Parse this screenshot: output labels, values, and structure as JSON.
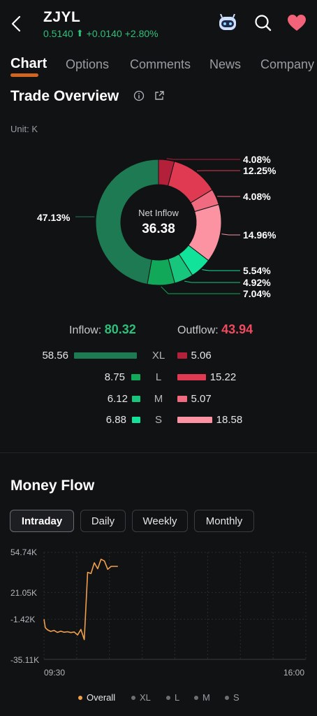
{
  "header": {
    "ticker": "ZJYL",
    "price": "0.5140",
    "change_abs": "+0.0140",
    "change_pct": "+2.80%",
    "icons": [
      "back-arrow-icon",
      "robot-assistant-icon",
      "search-icon",
      "heart-icon"
    ]
  },
  "tabs": [
    "Chart",
    "Options",
    "Comments",
    "News",
    "Company"
  ],
  "trade_overview": {
    "title": "Trade Overview",
    "unit": "Unit: K",
    "center_label": "Net Inflow",
    "center_value": "36.38",
    "segments": [
      {
        "label": "4.08%",
        "value": 4.08,
        "color": "#b3203a"
      },
      {
        "label": "12.25%",
        "value": 12.25,
        "color": "#e03a52"
      },
      {
        "label": "4.08%",
        "value": 4.08,
        "color": "#f06b80"
      },
      {
        "label": "14.96%",
        "value": 14.96,
        "color": "#fb93a3"
      },
      {
        "label": "5.54%",
        "value": 5.54,
        "color": "#12e39a"
      },
      {
        "label": "4.92%",
        "value": 4.92,
        "color": "#18c57c"
      },
      {
        "label": "7.04%",
        "value": 7.04,
        "color": "#11a85a"
      },
      {
        "label": "47.13%",
        "value": 47.13,
        "color": "#1d7a52"
      }
    ],
    "inflow_label": "Inflow:",
    "inflow_value": "80.32",
    "outflow_label": "Outflow:",
    "outflow_value": "43.94",
    "rows": [
      {
        "label": "XL",
        "in": "58.56",
        "in_num": 58.56,
        "out": "5.06",
        "out_num": 5.06,
        "in_color": "#1d7a52",
        "out_color": "#b3203a"
      },
      {
        "label": "L",
        "in": "8.75",
        "in_num": 8.75,
        "out": "15.22",
        "out_num": 15.22,
        "in_color": "#11a85a",
        "out_color": "#e03a52"
      },
      {
        "label": "M",
        "in": "6.12",
        "in_num": 6.12,
        "out": "5.07",
        "out_num": 5.07,
        "in_color": "#18c57c",
        "out_color": "#f06b80"
      },
      {
        "label": "S",
        "in": "6.88",
        "in_num": 6.88,
        "out": "18.58",
        "out_num": 18.58,
        "in_color": "#12e39a",
        "out_color": "#fb93a3"
      }
    ]
  },
  "money_flow": {
    "title": "Money Flow",
    "periods": [
      "Intraday",
      "Daily",
      "Weekly",
      "Monthly"
    ],
    "active_period": "Intraday",
    "y_ticks": [
      "54.74K",
      "21.05K",
      "-1.42K",
      "-35.11K"
    ],
    "x_ticks": [
      "09:30",
      "16:00"
    ],
    "legend": [
      {
        "label": "Overall",
        "active": true
      },
      {
        "label": "XL",
        "active": false
      },
      {
        "label": "L",
        "active": false
      },
      {
        "label": "M",
        "active": false
      },
      {
        "label": "S",
        "active": false
      }
    ],
    "line_color": "#f0a04b"
  },
  "chart_data": {
    "type": "line",
    "title": "",
    "xlabel": "",
    "ylabel": "",
    "x_range": [
      "09:30",
      "16:00"
    ],
    "ylim": [
      -35.11,
      54.74
    ],
    "y_ticks": [
      54.74,
      21.05,
      -1.42,
      -35.11
    ],
    "grid": true,
    "legend_position": "bottom",
    "series": [
      {
        "name": "Overall",
        "color": "#f0a04b",
        "x": [
          "09:30",
          "09:32",
          "09:35",
          "09:40",
          "09:45",
          "09:50",
          "09:55",
          "10:00",
          "10:05",
          "10:10",
          "10:15",
          "10:20",
          "10:25",
          "10:30",
          "10:35",
          "10:40",
          "10:45",
          "10:50",
          "10:55",
          "11:00",
          "11:05",
          "11:10",
          "11:15",
          "11:20"
        ],
        "values": [
          -1.4,
          -8.5,
          -10.2,
          -11.6,
          -10.8,
          -12.5,
          -11.4,
          -12.3,
          -11.9,
          -12.6,
          -12.1,
          -14.6,
          -10.0,
          -18.5,
          38.0,
          37.0,
          46.0,
          41.0,
          49.0,
          47.5,
          40.5,
          43.0,
          43.0,
          43.0
        ]
      }
    ]
  }
}
